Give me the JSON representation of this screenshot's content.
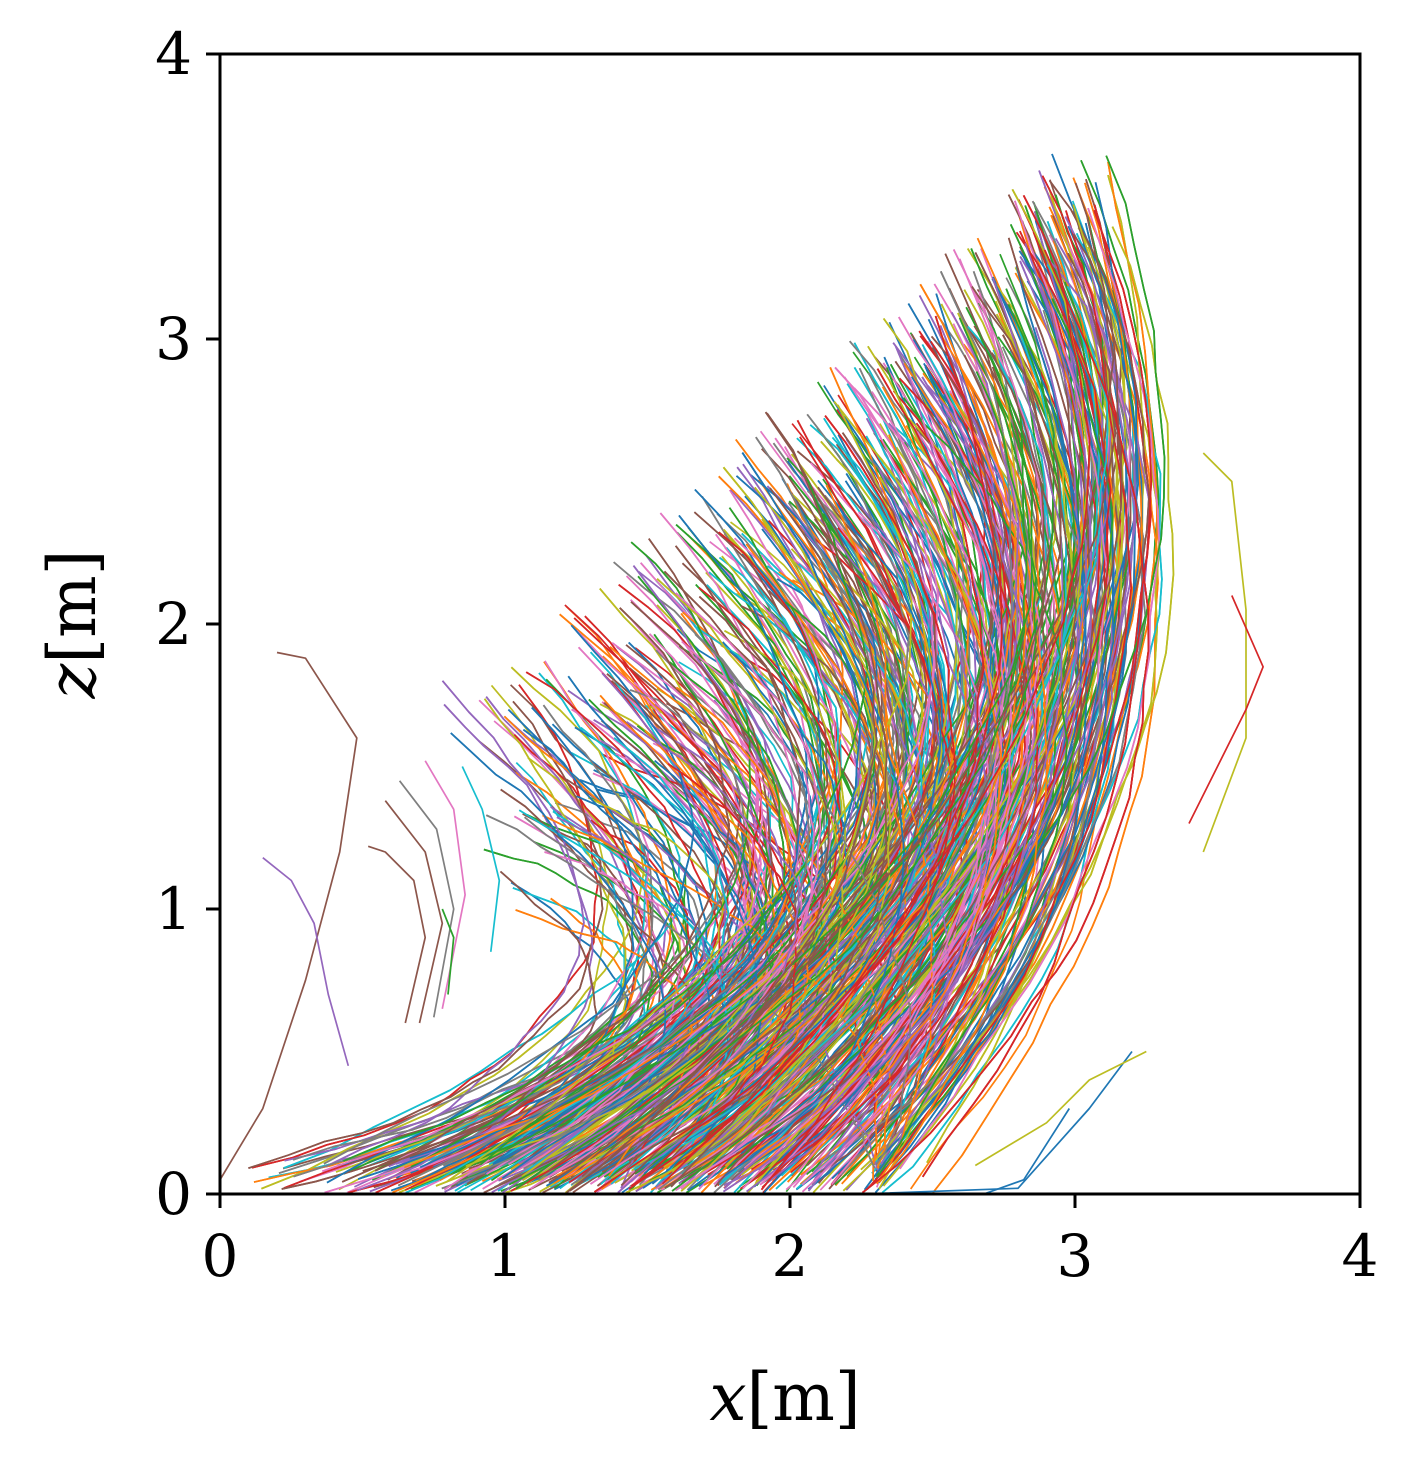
{
  "chart_data": {
    "type": "line",
    "title": "",
    "xlabel": {
      "var": "x",
      "unit": "[m]"
    },
    "ylabel": {
      "var": "z",
      "unit": "[m]"
    },
    "xlim": [
      0,
      4
    ],
    "ylim": [
      0,
      4
    ],
    "xticks": [
      "0",
      "1",
      "2",
      "3",
      "4"
    ],
    "yticks": [
      "0",
      "1",
      "2",
      "3",
      "4"
    ],
    "grid": false,
    "legend": "none",
    "palette": [
      "#1f77b4",
      "#ff7f0e",
      "#2ca02c",
      "#d62728",
      "#9467bd",
      "#8c564b",
      "#e377c2",
      "#7f7f7f",
      "#bcbd22",
      "#17becf"
    ],
    "series": [
      {
        "color": "#8c564b",
        "points": [
          [
            0.0,
            0.05
          ],
          [
            0.15,
            0.3
          ],
          [
            0.3,
            0.75
          ],
          [
            0.42,
            1.2
          ],
          [
            0.48,
            1.6
          ],
          [
            0.3,
            1.88
          ],
          [
            0.2,
            1.9
          ]
        ]
      },
      {
        "color": "#9467bd",
        "points": [
          [
            0.45,
            0.45
          ],
          [
            0.38,
            0.7
          ],
          [
            0.33,
            0.95
          ],
          [
            0.25,
            1.1
          ],
          [
            0.15,
            1.18
          ]
        ]
      },
      {
        "color": "#8c564b",
        "points": [
          [
            0.65,
            0.6
          ],
          [
            0.72,
            0.9
          ],
          [
            0.68,
            1.1
          ],
          [
            0.58,
            1.2
          ],
          [
            0.52,
            1.22
          ]
        ]
      },
      {
        "color": "#8c564b",
        "points": [
          [
            0.7,
            0.6
          ],
          [
            0.78,
            0.95
          ],
          [
            0.72,
            1.2
          ],
          [
            0.58,
            1.38
          ]
        ]
      },
      {
        "color": "#7f7f7f",
        "points": [
          [
            0.75,
            0.62
          ],
          [
            0.82,
            1.0
          ],
          [
            0.76,
            1.28
          ],
          [
            0.63,
            1.45
          ]
        ]
      },
      {
        "color": "#e377c2",
        "points": [
          [
            0.78,
            0.65
          ],
          [
            0.86,
            1.05
          ],
          [
            0.82,
            1.35
          ],
          [
            0.72,
            1.52
          ]
        ]
      },
      {
        "color": "#2ca02c",
        "points": [
          [
            0.8,
            0.7
          ],
          [
            0.82,
            0.9
          ],
          [
            0.78,
            1.0
          ]
        ]
      },
      {
        "color": "#17becf",
        "points": [
          [
            0.95,
            0.85
          ],
          [
            0.98,
            1.1
          ],
          [
            0.92,
            1.35
          ],
          [
            0.85,
            1.5
          ]
        ]
      },
      {
        "color": "#1f77b4",
        "points": [
          [
            2.25,
            0.0
          ],
          [
            2.8,
            0.02
          ],
          [
            3.05,
            0.3
          ],
          [
            3.2,
            0.5
          ]
        ]
      },
      {
        "color": "#bcbd22",
        "points": [
          [
            2.65,
            0.1
          ],
          [
            2.9,
            0.25
          ],
          [
            3.05,
            0.4
          ],
          [
            3.25,
            0.5
          ]
        ]
      },
      {
        "color": "#1f77b4",
        "points": [
          [
            2.68,
            0.0
          ],
          [
            2.82,
            0.05
          ],
          [
            2.98,
            0.3
          ]
        ]
      },
      {
        "color": "#bcbd22",
        "points": [
          [
            3.45,
            1.2
          ],
          [
            3.6,
            1.6
          ],
          [
            3.6,
            2.05
          ],
          [
            3.55,
            2.5
          ],
          [
            3.45,
            2.6
          ]
        ]
      },
      {
        "color": "#d62728",
        "points": [
          [
            3.4,
            1.3
          ],
          [
            3.6,
            1.7
          ],
          [
            3.66,
            1.85
          ],
          [
            3.55,
            2.1
          ]
        ]
      }
    ]
  }
}
